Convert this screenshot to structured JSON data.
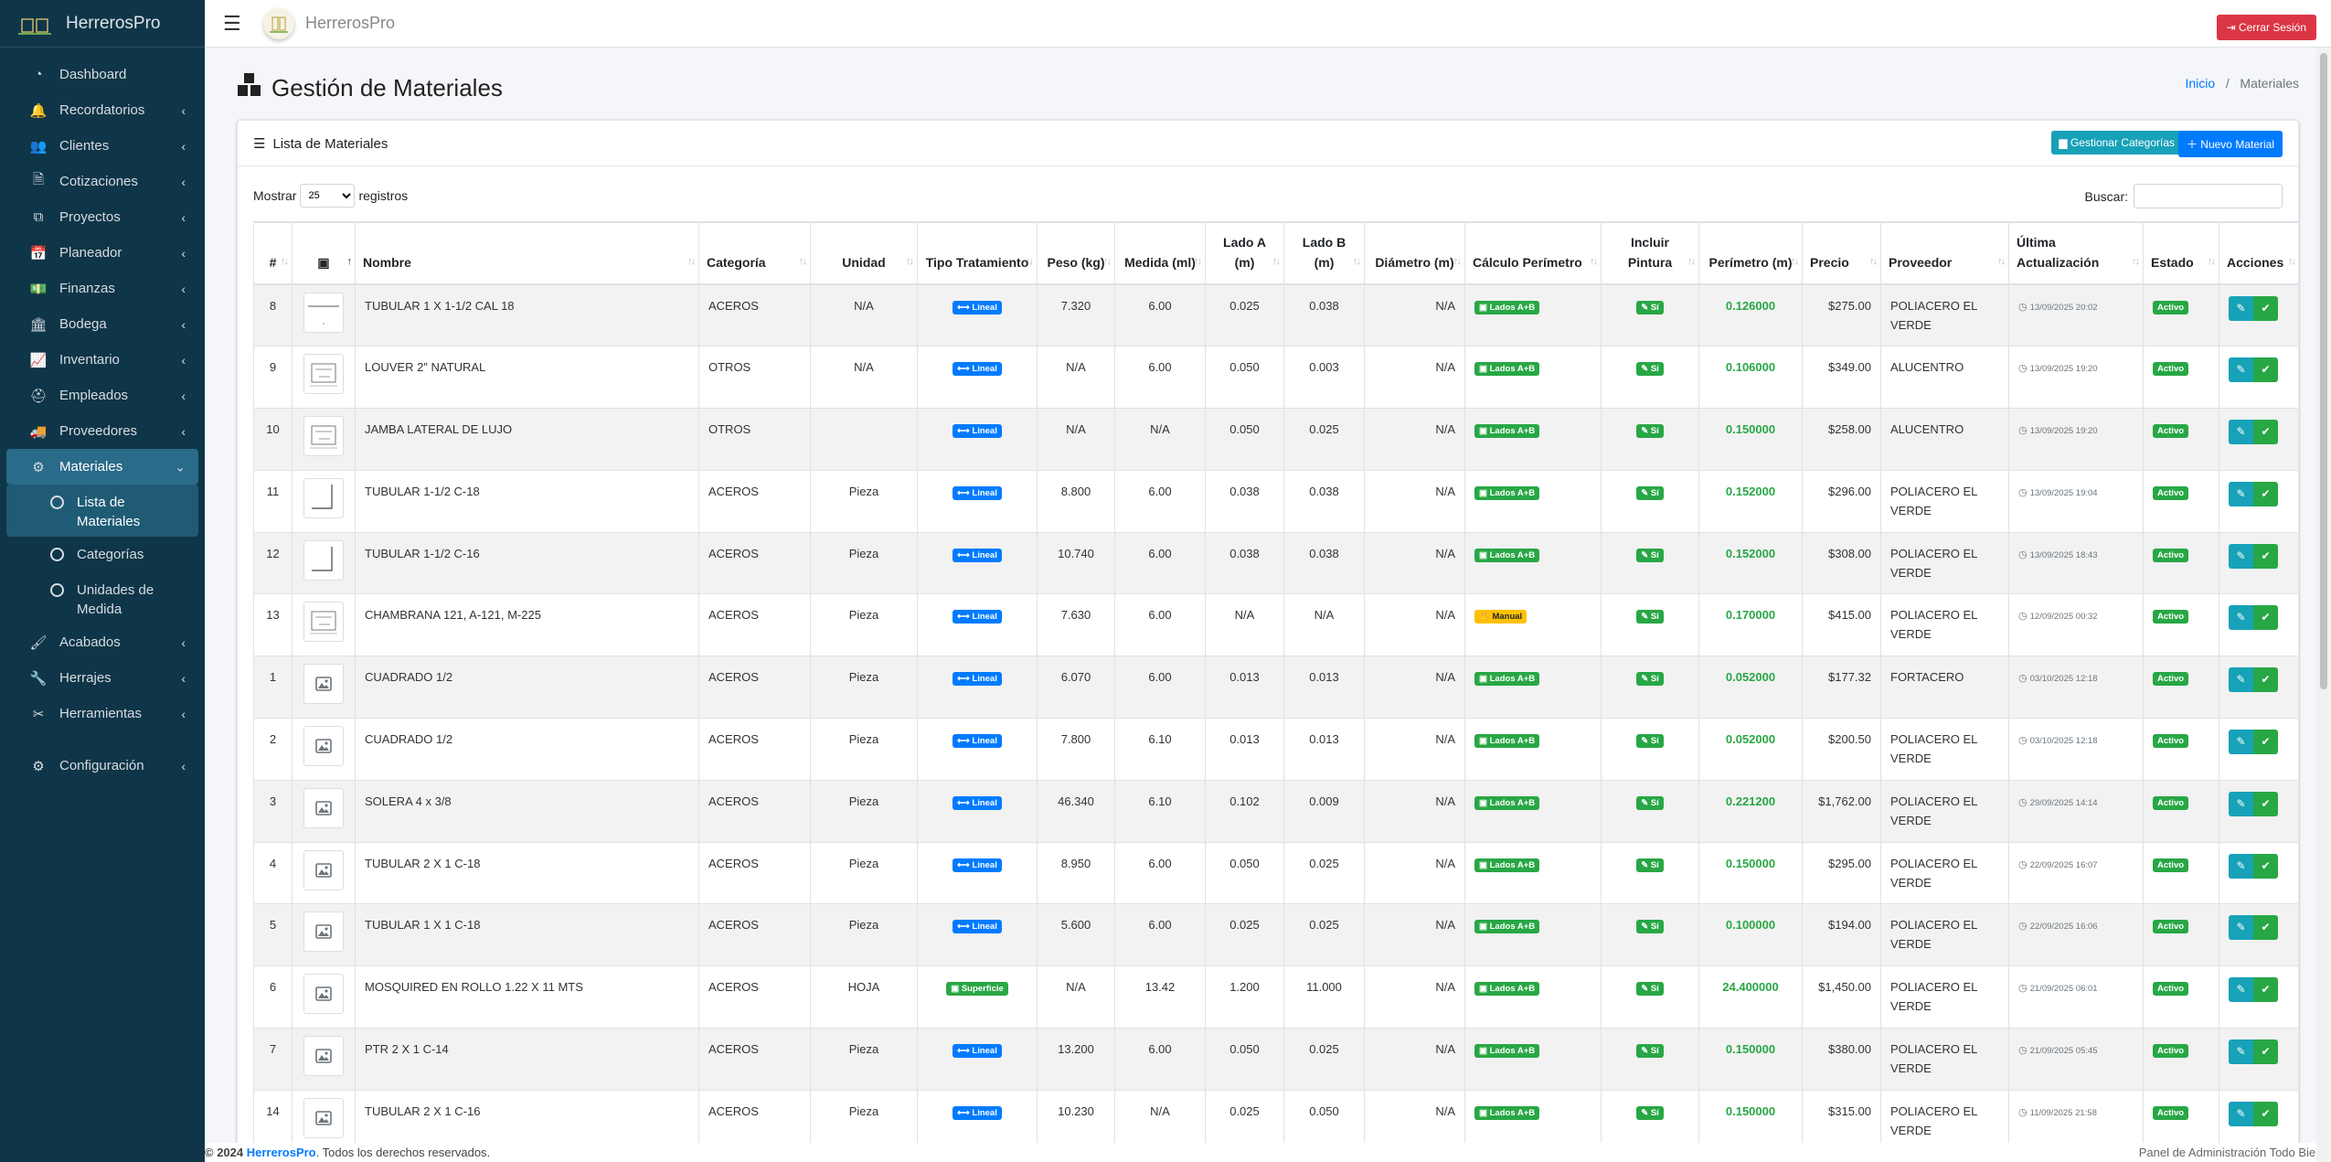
{
  "brand": {
    "name": "HerrerosPro"
  },
  "sidebar": {
    "items": [
      {
        "label": "Dashboard",
        "icon": "dashboard-icon",
        "glyph": "◔",
        "chev": false
      },
      {
        "label": "Recordatorios",
        "icon": "bell-icon",
        "glyph": "🔔",
        "chev": true
      },
      {
        "label": "Clientes",
        "icon": "users-icon",
        "glyph": "👥",
        "chev": true
      },
      {
        "label": "Cotizaciones",
        "icon": "invoice-icon",
        "glyph": "🗎",
        "chev": true
      },
      {
        "label": "Proyectos",
        "icon": "project-diagram-icon",
        "glyph": "⧉",
        "chev": true
      },
      {
        "label": "Planeador",
        "icon": "calendar-icon",
        "glyph": "📅",
        "chev": true
      },
      {
        "label": "Finanzas",
        "icon": "money-icon",
        "glyph": "💵",
        "chev": true
      },
      {
        "label": "Bodega",
        "icon": "warehouse-icon",
        "glyph": "🏛",
        "chev": true
      },
      {
        "label": "Inventario",
        "icon": "chart-icon",
        "glyph": "📈",
        "chev": true
      },
      {
        "label": "Empleados",
        "icon": "hardhat-icon",
        "glyph": "⛑",
        "chev": true
      },
      {
        "label": "Proveedores",
        "icon": "truck-icon",
        "glyph": "🚚",
        "chev": true
      }
    ],
    "materiales": {
      "label": "Materiales",
      "glyph": "⚙"
    },
    "sub_items": [
      {
        "label": "Lista de Materiales"
      },
      {
        "label": "Categorías"
      },
      {
        "label": "Unidades de Medida"
      }
    ],
    "items_after": [
      {
        "label": "Acabados",
        "icon": "paint-roller-icon",
        "glyph": "🖌",
        "chev": true
      },
      {
        "label": "Herrajes",
        "icon": "brush-icon",
        "glyph": "🔧",
        "chev": true
      },
      {
        "label": "Herramientas",
        "icon": "tools-icon",
        "glyph": "✂",
        "chev": true
      }
    ],
    "config": {
      "label": "Configuración",
      "glyph": "⚙"
    }
  },
  "topbar": {
    "logout_label": "Cerrar Sesión"
  },
  "page": {
    "title": "Gestión de Materiales",
    "breadcrumb_home": "Inicio",
    "breadcrumb_current": "Materiales"
  },
  "card": {
    "title": "Lista de Materiales",
    "btn_categories": "Gestionar Categorías",
    "btn_new": "Nuevo Material",
    "show_label": "Mostrar",
    "show_value": "25",
    "records_label": "registros",
    "search_label": "Buscar:"
  },
  "table": {
    "headers": [
      "#",
      "",
      "Nombre",
      "Categoría",
      "Unidad",
      "Tipo Tratamiento",
      "Peso (kg)",
      "Medida (ml)",
      "Lado A (m)",
      "Lado B (m)",
      "Diámetro (m)",
      "Cálculo Perímetro",
      "Incluir Pintura",
      "Perímetro (m)",
      "Precio",
      "Proveedor",
      "Última Actualización",
      "Estado",
      "Acciones"
    ],
    "rows": [
      {
        "id": "8",
        "thumb": "line",
        "nombre": "TUBULAR 1 X 1-1/2 CAL 18",
        "categoria": "ACEROS",
        "unidad": "N/A",
        "tipo": "Lineal",
        "peso": "7.320",
        "medida": "6.00",
        "lado_a": "0.025",
        "lado_b": "0.038",
        "diametro": "N/A",
        "calculo": "Lados A+B",
        "pintura": "Sí",
        "perimetro": "0.126000",
        "precio": "$275.00",
        "proveedor": "POLIACERO EL VERDE",
        "fecha": "13/09/2025 20:02",
        "estado": "Activo"
      },
      {
        "id": "9",
        "thumb": "sketch",
        "nombre": "LOUVER 2\" NATURAL",
        "categoria": "OTROS",
        "unidad": "N/A",
        "tipo": "Lineal",
        "peso": "N/A",
        "medida": "6.00",
        "lado_a": "0.050",
        "lado_b": "0.003",
        "diametro": "N/A",
        "calculo": "Lados A+B",
        "pintura": "Sí",
        "perimetro": "0.106000",
        "precio": "$349.00",
        "proveedor": "ALUCENTRO",
        "fecha": "13/09/2025 19:20",
        "estado": "Activo"
      },
      {
        "id": "10",
        "thumb": "sketch",
        "nombre": "JAMBA LATERAL DE LUJO",
        "categoria": "OTROS",
        "unidad": "",
        "tipo": "Lineal",
        "peso": "N/A",
        "medida": "N/A",
        "lado_a": "0.050",
        "lado_b": "0.025",
        "diametro": "N/A",
        "calculo": "Lados A+B",
        "pintura": "Sí",
        "perimetro": "0.150000",
        "precio": "$258.00",
        "proveedor": "ALUCENTRO",
        "fecha": "13/09/2025 19:20",
        "estado": "Activo"
      },
      {
        "id": "11",
        "thumb": "angle",
        "nombre": "TUBULAR 1-1/2 C-18",
        "categoria": "ACEROS",
        "unidad": "Pieza",
        "tipo": "Lineal",
        "peso": "8.800",
        "medida": "6.00",
        "lado_a": "0.038",
        "lado_b": "0.038",
        "diametro": "N/A",
        "calculo": "Lados A+B",
        "pintura": "Sí",
        "perimetro": "0.152000",
        "precio": "$296.00",
        "proveedor": "POLIACERO EL VERDE",
        "fecha": "13/09/2025 19:04",
        "estado": "Activo"
      },
      {
        "id": "12",
        "thumb": "angle",
        "nombre": "TUBULAR 1-1/2 C-16",
        "categoria": "ACEROS",
        "unidad": "Pieza",
        "tipo": "Lineal",
        "peso": "10.740",
        "medida": "6.00",
        "lado_a": "0.038",
        "lado_b": "0.038",
        "diametro": "N/A",
        "calculo": "Lados A+B",
        "pintura": "Sí",
        "perimetro": "0.152000",
        "precio": "$308.00",
        "proveedor": "POLIACERO EL VERDE",
        "fecha": "13/09/2025 18:43",
        "estado": "Activo"
      },
      {
        "id": "13",
        "thumb": "sketch",
        "nombre": "CHAMBRANA 121, A-121, M-225",
        "categoria": "ACEROS",
        "unidad": "Pieza",
        "tipo": "Lineal",
        "peso": "7.630",
        "medida": "6.00",
        "lado_a": "N/A",
        "lado_b": "N/A",
        "diametro": "N/A",
        "calculo": "Manual",
        "pintura": "Sí",
        "perimetro": "0.170000",
        "precio": "$415.00",
        "proveedor": "POLIACERO EL VERDE",
        "fecha": "12/09/2025 00:32",
        "estado": "Activo"
      },
      {
        "id": "1",
        "thumb": "image",
        "nombre": "CUADRADO 1/2",
        "categoria": "ACEROS",
        "unidad": "Pieza",
        "tipo": "Lineal",
        "peso": "6.070",
        "medida": "6.00",
        "lado_a": "0.013",
        "lado_b": "0.013",
        "diametro": "N/A",
        "calculo": "Lados A+B",
        "pintura": "Sí",
        "perimetro": "0.052000",
        "precio": "$177.32",
        "proveedor": "FORTACERO",
        "fecha": "03/10/2025 12:18",
        "estado": "Activo"
      },
      {
        "id": "2",
        "thumb": "image",
        "nombre": "CUADRADO 1/2",
        "categoria": "ACEROS",
        "unidad": "Pieza",
        "tipo": "Lineal",
        "peso": "7.800",
        "medida": "6.10",
        "lado_a": "0.013",
        "lado_b": "0.013",
        "diametro": "N/A",
        "calculo": "Lados A+B",
        "pintura": "Sí",
        "perimetro": "0.052000",
        "precio": "$200.50",
        "proveedor": "POLIACERO EL VERDE",
        "fecha": "03/10/2025 12:18",
        "estado": "Activo"
      },
      {
        "id": "3",
        "thumb": "image",
        "nombre": "SOLERA 4 x 3/8",
        "categoria": "ACEROS",
        "unidad": "Pieza",
        "tipo": "Lineal",
        "peso": "46.340",
        "medida": "6.10",
        "lado_a": "0.102",
        "lado_b": "0.009",
        "diametro": "N/A",
        "calculo": "Lados A+B",
        "pintura": "Sí",
        "perimetro": "0.221200",
        "precio": "$1,762.00",
        "proveedor": "POLIACERO EL VERDE",
        "fecha": "29/09/2025 14:14",
        "estado": "Activo"
      },
      {
        "id": "4",
        "thumb": "image",
        "nombre": "TUBULAR 2 X 1 C-18",
        "categoria": "ACEROS",
        "unidad": "Pieza",
        "tipo": "Lineal",
        "peso": "8.950",
        "medida": "6.00",
        "lado_a": "0.050",
        "lado_b": "0.025",
        "diametro": "N/A",
        "calculo": "Lados A+B",
        "pintura": "Sí",
        "perimetro": "0.150000",
        "precio": "$295.00",
        "proveedor": "POLIACERO EL VERDE",
        "fecha": "22/09/2025 16:07",
        "estado": "Activo"
      },
      {
        "id": "5",
        "thumb": "image",
        "nombre": "TUBULAR 1 X 1 C-18",
        "categoria": "ACEROS",
        "unidad": "Pieza",
        "tipo": "Lineal",
        "peso": "5.600",
        "medida": "6.00",
        "lado_a": "0.025",
        "lado_b": "0.025",
        "diametro": "N/A",
        "calculo": "Lados A+B",
        "pintura": "Sí",
        "perimetro": "0.100000",
        "precio": "$194.00",
        "proveedor": "POLIACERO EL VERDE",
        "fecha": "22/09/2025 16:06",
        "estado": "Activo"
      },
      {
        "id": "6",
        "thumb": "image",
        "nombre": "MOSQUIRED EN ROLLO 1.22 X 11 MTS",
        "categoria": "ACEROS",
        "unidad": "HOJA",
        "tipo": "Superficie",
        "peso": "N/A",
        "medida": "13.42",
        "lado_a": "1.200",
        "lado_b": "11.000",
        "diametro": "N/A",
        "calculo": "Lados A+B",
        "pintura": "Sí",
        "perimetro": "24.400000",
        "precio": "$1,450.00",
        "proveedor": "POLIACERO EL VERDE",
        "fecha": "21/09/2025 06:01",
        "estado": "Activo"
      },
      {
        "id": "7",
        "thumb": "image",
        "nombre": "PTR 2 X 1 C-14",
        "categoria": "ACEROS",
        "unidad": "Pieza",
        "tipo": "Lineal",
        "peso": "13.200",
        "medida": "6.00",
        "lado_a": "0.050",
        "lado_b": "0.025",
        "diametro": "N/A",
        "calculo": "Lados A+B",
        "pintura": "Sí",
        "perimetro": "0.150000",
        "precio": "$380.00",
        "proveedor": "POLIACERO EL VERDE",
        "fecha": "21/09/2025 05:45",
        "estado": "Activo"
      },
      {
        "id": "14",
        "thumb": "image",
        "nombre": "TUBULAR 2 X 1 C-16",
        "categoria": "ACEROS",
        "unidad": "Pieza",
        "tipo": "Lineal",
        "peso": "10.230",
        "medida": "N/A",
        "lado_a": "0.025",
        "lado_b": "0.050",
        "diametro": "N/A",
        "calculo": "Lados A+B",
        "pintura": "Sí",
        "perimetro": "0.150000",
        "precio": "$315.00",
        "proveedor": "POLIACERO EL VERDE",
        "fecha": "11/09/2025 21:58",
        "estado": "Activo"
      }
    ]
  },
  "footer": {
    "year_prefix": "© 2024",
    "brand": "HerrerosPro",
    "rights": ". Todos los derechos reservados.",
    "right_text": "Panel de Administración Todo Bien."
  }
}
